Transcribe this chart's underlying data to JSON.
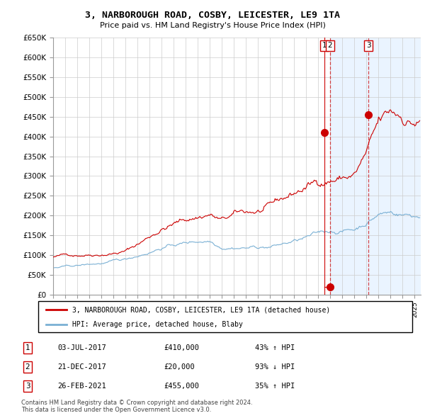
{
  "title": "3, NARBOROUGH ROAD, COSBY, LEICESTER, LE9 1TA",
  "subtitle": "Price paid vs. HM Land Registry's House Price Index (HPI)",
  "ylim": [
    0,
    650000
  ],
  "yticks": [
    0,
    50000,
    100000,
    150000,
    200000,
    250000,
    300000,
    350000,
    400000,
    450000,
    500000,
    550000,
    600000,
    650000
  ],
  "ytick_labels": [
    "£0",
    "£50K",
    "£100K",
    "£150K",
    "£200K",
    "£250K",
    "£300K",
    "£350K",
    "£400K",
    "£450K",
    "£500K",
    "£550K",
    "£600K",
    "£650K"
  ],
  "background_color": "#ffffff",
  "grid_color": "#cccccc",
  "legend_label_red": "3, NARBOROUGH ROAD, COSBY, LEICESTER, LE9 1TA (detached house)",
  "legend_label_blue": "HPI: Average price, detached house, Blaby",
  "transactions": [
    {
      "id": 1,
      "date": "03-JUL-2017",
      "price": 410000,
      "pct": "43%",
      "dir": "↑",
      "year_x": 2017.5
    },
    {
      "id": 2,
      "date": "21-DEC-2017",
      "price": 20000,
      "pct": "93%",
      "dir": "↓",
      "year_x": 2017.97
    },
    {
      "id": 3,
      "date": "26-FEB-2021",
      "price": 455000,
      "pct": "35%",
      "dir": "↑",
      "year_x": 2021.15
    }
  ],
  "footer_line1": "Contains HM Land Registry data © Crown copyright and database right 2024.",
  "footer_line2": "This data is licensed under the Open Government Licence v3.0.",
  "red_line_color": "#cc0000",
  "blue_line_color": "#7ab0d4",
  "shade_color": "#ddeeff",
  "xlim_min": 1995.0,
  "xlim_max": 2025.5
}
